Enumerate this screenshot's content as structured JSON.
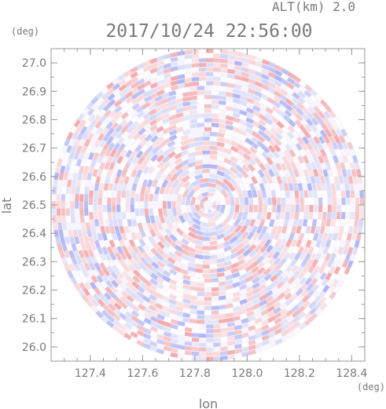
{
  "header": {
    "altitude": "ALT(km) 2.0",
    "timestamp": "2017/10/24 22:56:00",
    "y_unit": "(deg)",
    "x_unit": "(deg)"
  },
  "chart_data": {
    "type": "heatmap",
    "title": "2017/10/24 22:56:00",
    "xlabel": "lon",
    "ylabel": "lat",
    "xlim": [
      127.25,
      128.45
    ],
    "ylim": [
      25.95,
      27.05
    ],
    "x_ticks": [
      "127.4",
      "127.6",
      "127.8",
      "128.0",
      "128.2",
      "128.4"
    ],
    "x_tick_values": [
      127.4,
      127.6,
      127.8,
      128.0,
      128.2,
      128.4
    ],
    "y_ticks": [
      "27.0",
      "26.9",
      "26.8",
      "26.7",
      "26.6",
      "26.5",
      "26.4",
      "26.3",
      "26.2",
      "26.1",
      "26.0"
    ],
    "y_tick_values": [
      27.0,
      26.9,
      26.8,
      26.7,
      26.6,
      26.5,
      26.4,
      26.3,
      26.2,
      26.1,
      26.0
    ],
    "radar_center": {
      "lon": 127.85,
      "lat": 26.5
    },
    "radar_range_deg_lon": 0.6,
    "colors": {
      "positive": "#f4a6a6",
      "negative": "#aab2f4",
      "neutral": "#ffffff",
      "axis": "#9a9a9a"
    },
    "grid": false
  }
}
